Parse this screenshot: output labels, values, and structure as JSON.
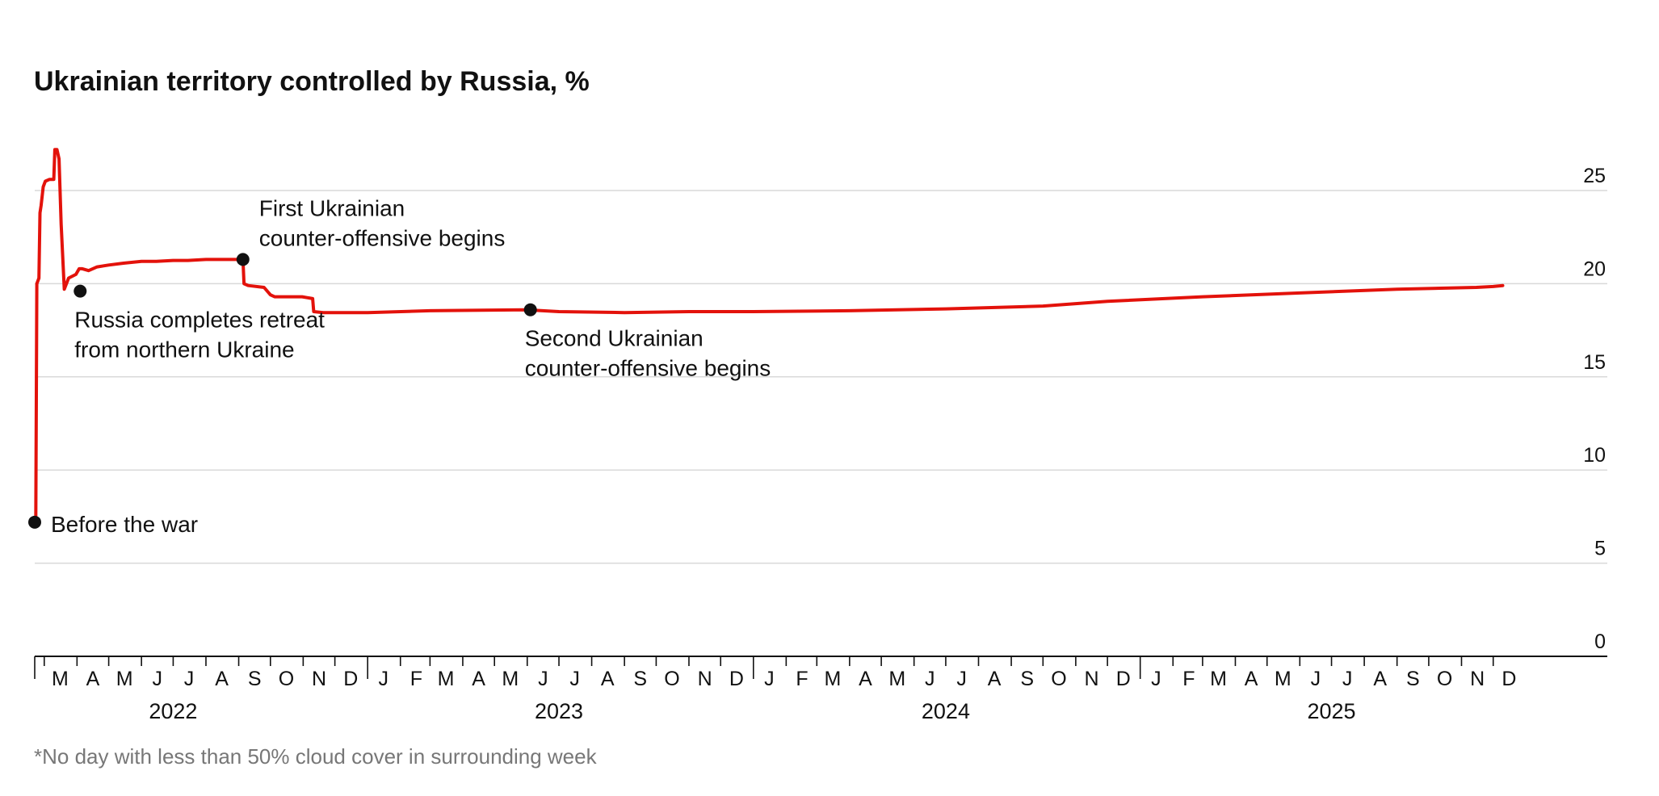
{
  "footnote": "*No day with less than 50% cloud cover in surrounding week",
  "colors": {
    "line": "#e3120b",
    "marker": "#111111",
    "grid": "#d9d9d9",
    "footnote": "#777777"
  },
  "chart_data": {
    "type": "line",
    "title": "Ukrainian territory controlled by Russia, %",
    "xlabel": "",
    "ylabel": "",
    "ylim": [
      0,
      25
    ],
    "yticks": [
      0,
      5,
      10,
      15,
      20,
      25
    ],
    "ytick_labels": [
      "0",
      "5",
      "10",
      "15",
      "20",
      "25"
    ],
    "y_axis_position": "right",
    "grid": true,
    "xlim": [
      "2022-02-20",
      "2025-12-31"
    ],
    "x_month_labels": [
      {
        "date": "2022-03-01",
        "label": "M"
      },
      {
        "date": "2022-04-01",
        "label": "A"
      },
      {
        "date": "2022-05-01",
        "label": "M"
      },
      {
        "date": "2022-06-01",
        "label": "J"
      },
      {
        "date": "2022-07-01",
        "label": "J"
      },
      {
        "date": "2022-08-01",
        "label": "A"
      },
      {
        "date": "2022-09-01",
        "label": "S"
      },
      {
        "date": "2022-10-01",
        "label": "O"
      },
      {
        "date": "2022-11-01",
        "label": "N"
      },
      {
        "date": "2022-12-01",
        "label": "D"
      },
      {
        "date": "2023-01-01",
        "label": "J"
      },
      {
        "date": "2023-02-01",
        "label": "F"
      },
      {
        "date": "2023-03-01",
        "label": "M"
      },
      {
        "date": "2023-04-01",
        "label": "A"
      },
      {
        "date": "2023-05-01",
        "label": "M"
      },
      {
        "date": "2023-06-01",
        "label": "J"
      },
      {
        "date": "2023-07-01",
        "label": "J"
      },
      {
        "date": "2023-08-01",
        "label": "A"
      },
      {
        "date": "2023-09-01",
        "label": "S"
      },
      {
        "date": "2023-10-01",
        "label": "O"
      },
      {
        "date": "2023-11-01",
        "label": "N"
      },
      {
        "date": "2023-12-01",
        "label": "D"
      },
      {
        "date": "2024-01-01",
        "label": "J"
      },
      {
        "date": "2024-02-01",
        "label": "F"
      },
      {
        "date": "2024-03-01",
        "label": "M"
      },
      {
        "date": "2024-04-01",
        "label": "A"
      },
      {
        "date": "2024-05-01",
        "label": "M"
      },
      {
        "date": "2024-06-01",
        "label": "J"
      },
      {
        "date": "2024-07-01",
        "label": "J"
      },
      {
        "date": "2024-08-01",
        "label": "A"
      },
      {
        "date": "2024-09-01",
        "label": "S"
      },
      {
        "date": "2024-10-01",
        "label": "O"
      },
      {
        "date": "2024-11-01",
        "label": "N"
      },
      {
        "date": "2024-12-01",
        "label": "D"
      },
      {
        "date": "2025-01-01",
        "label": "J"
      },
      {
        "date": "2025-02-01",
        "label": "F"
      },
      {
        "date": "2025-03-01",
        "label": "M"
      },
      {
        "date": "2025-04-01",
        "label": "A"
      },
      {
        "date": "2025-05-01",
        "label": "M"
      },
      {
        "date": "2025-06-01",
        "label": "J"
      },
      {
        "date": "2025-07-01",
        "label": "J"
      },
      {
        "date": "2025-08-01",
        "label": "A"
      },
      {
        "date": "2025-09-01",
        "label": "S"
      },
      {
        "date": "2025-10-01",
        "label": "O"
      },
      {
        "date": "2025-11-01",
        "label": "N"
      },
      {
        "date": "2025-12-01",
        "label": "D"
      }
    ],
    "x_year_labels": [
      {
        "date": "2022-07-01",
        "label": "2022"
      },
      {
        "date": "2023-07-01",
        "label": "2023"
      },
      {
        "date": "2024-07-01",
        "label": "2024"
      },
      {
        "date": "2025-07-01",
        "label": "2025"
      }
    ],
    "series": [
      {
        "x": [
          "2022-02-20",
          "2022-02-21",
          "2022-02-22",
          "2022-02-24",
          "2022-02-25",
          "2022-02-26",
          "2022-02-28",
          "2022-03-02",
          "2022-03-06",
          "2022-03-10",
          "2022-03-11",
          "2022-03-13",
          "2022-03-15",
          "2022-03-17",
          "2022-03-20",
          "2022-03-24",
          "2022-03-31",
          "2022-04-03",
          "2022-04-06",
          "2022-04-12",
          "2022-04-20",
          "2022-05-01",
          "2022-05-15",
          "2022-06-01",
          "2022-06-15",
          "2022-07-01",
          "2022-07-15",
          "2022-08-01",
          "2022-08-20",
          "2022-09-05",
          "2022-09-06",
          "2022-09-10",
          "2022-09-25",
          "2022-10-01",
          "2022-10-05",
          "2022-10-31",
          "2022-11-10",
          "2022-11-11",
          "2022-11-20",
          "2022-12-01",
          "2023-01-01",
          "2023-03-01",
          "2023-05-31",
          "2023-07-01",
          "2023-09-01",
          "2023-11-01",
          "2024-01-01",
          "2024-04-01",
          "2024-07-01",
          "2024-10-01",
          "2024-12-01",
          "2025-03-01",
          "2025-06-01",
          "2025-09-01",
          "2025-11-15",
          "2025-12-01",
          "2025-12-10"
        ],
        "y": [
          7.2,
          7.2,
          20.0,
          20.3,
          23.8,
          24.2,
          25.2,
          25.5,
          25.6,
          25.6,
          27.2,
          27.2,
          26.7,
          23.2,
          19.7,
          20.3,
          20.5,
          20.8,
          20.8,
          20.7,
          20.9,
          21.0,
          21.1,
          21.2,
          21.2,
          21.25,
          21.25,
          21.3,
          21.3,
          21.3,
          20.0,
          19.9,
          19.8,
          19.4,
          19.3,
          19.3,
          19.2,
          18.5,
          18.45,
          18.45,
          18.45,
          18.55,
          18.6,
          18.5,
          18.45,
          18.5,
          18.5,
          18.55,
          18.65,
          18.8,
          19.05,
          19.3,
          19.5,
          19.7,
          19.8,
          19.85,
          19.9
        ]
      }
    ],
    "annotations": [
      {
        "date": "2022-02-20",
        "value": 7.2,
        "lines": [
          "Before the war"
        ]
      },
      {
        "date": "2022-04-04",
        "value": 19.6,
        "lines": [
          "Russia completes retreat",
          "from northern Ukraine"
        ]
      },
      {
        "date": "2022-09-05",
        "value": 21.3,
        "lines": [
          "First Ukrainian",
          "counter-offensive begins"
        ]
      },
      {
        "date": "2023-06-04",
        "value": 18.6,
        "lines": [
          "Second Ukrainian",
          "counter-offensive begins"
        ]
      }
    ]
  }
}
